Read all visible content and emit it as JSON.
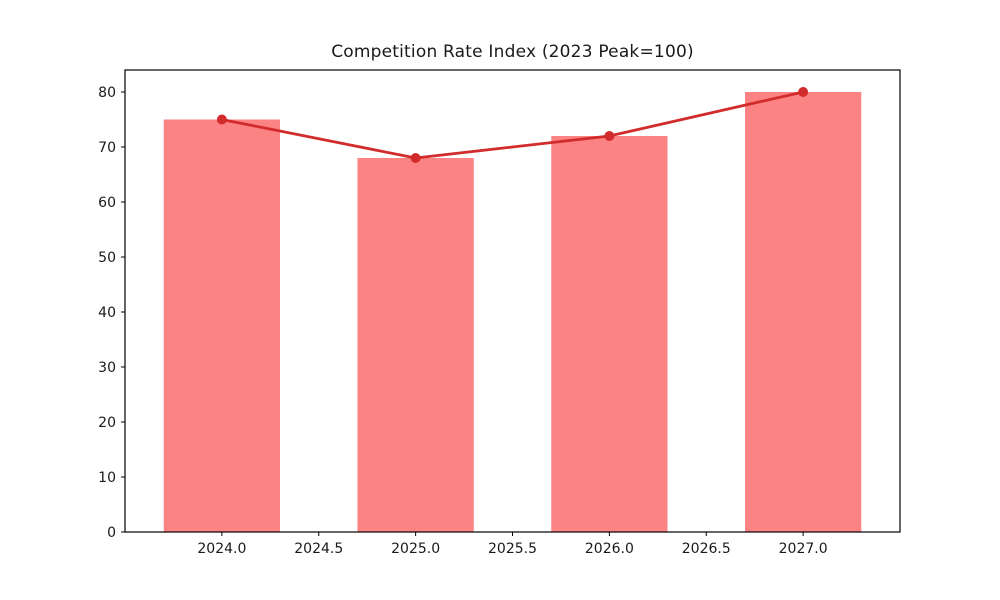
{
  "chart_data": {
    "type": "bar",
    "title": "Competition Rate Index (2023 Peak=100)",
    "x": [
      2024,
      2025,
      2026,
      2027
    ],
    "categories": [
      "2024",
      "2025",
      "2026",
      "2027"
    ],
    "series": [
      {
        "name": "competition-rate-index-bars",
        "type": "bar",
        "values": [
          75,
          68,
          72,
          80
        ],
        "color": "#fc8383",
        "bar_width": 0.6
      },
      {
        "name": "competition-rate-index-trend-line",
        "type": "line",
        "values": [
          75,
          68,
          72,
          80
        ],
        "color": "#d22b2b",
        "marker": "circle",
        "line_width": 2.8,
        "marker_radius": 5
      }
    ],
    "xlabel": "",
    "ylabel": "",
    "xlim": [
      2023.5,
      2027.5
    ],
    "ylim": [
      0,
      84
    ],
    "xticks": [
      2024.0,
      2024.5,
      2025.0,
      2025.5,
      2026.0,
      2026.5,
      2027.0
    ],
    "xtick_labels": [
      "2024.0",
      "2024.5",
      "2025.0",
      "2025.5",
      "2026.0",
      "2026.5",
      "2027.0"
    ],
    "yticks": [
      0,
      10,
      20,
      30,
      40,
      50,
      60,
      70,
      80
    ],
    "ytick_labels": [
      "0",
      "10",
      "20",
      "30",
      "40",
      "50",
      "60",
      "70",
      "80"
    ],
    "grid": false,
    "legend": false,
    "frame_color": "#000000",
    "background": "#ffffff",
    "tick_label_color": "#1a1a1a",
    "title_color": "#1a1a1a",
    "tick_font_size": 14,
    "title_font_size": 17
  }
}
